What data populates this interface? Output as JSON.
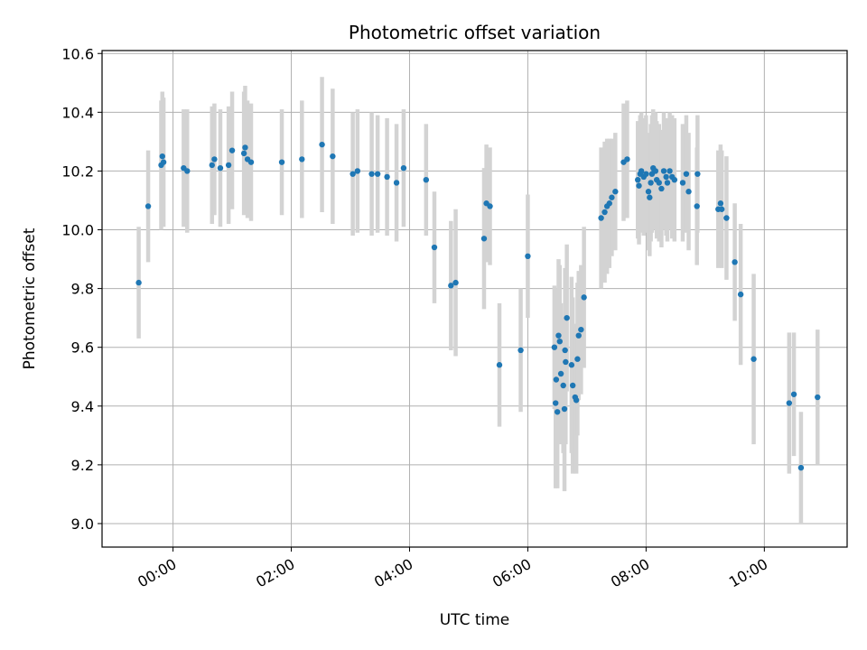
{
  "chart_data": {
    "type": "scatter",
    "title": "Photometric offset variation",
    "xlabel": "UTC time",
    "ylabel": "Photometric offset",
    "xlim": [
      -1.2,
      11.4
    ],
    "ylim": [
      8.92,
      10.61
    ],
    "x_unit": "hours UTC",
    "xticks": [
      0,
      2,
      4,
      6,
      8,
      10
    ],
    "xtick_labels": [
      "00:00",
      "02:00",
      "04:00",
      "06:00",
      "08:00",
      "10:00"
    ],
    "yticks": [
      9.0,
      9.2,
      9.4,
      9.6,
      9.8,
      10.0,
      10.2,
      10.4,
      10.6
    ],
    "ytick_labels": [
      "9.0",
      "9.2",
      "9.4",
      "9.6",
      "9.8",
      "10.0",
      "10.2",
      "10.4",
      "10.6"
    ],
    "grid": true,
    "point_color": "#1f77b4",
    "errorbar_color": "#d3d3d3",
    "series": [
      {
        "x": [
          -0.58,
          -0.42,
          -0.2,
          -0.18,
          -0.16,
          0.18,
          0.24,
          0.66,
          0.7,
          0.8,
          0.94,
          1.0,
          1.2,
          1.22,
          1.26,
          1.32,
          1.84,
          2.18,
          2.52,
          2.7,
          3.04,
          3.12,
          3.36,
          3.46,
          3.62,
          3.78,
          3.9,
          4.28,
          4.42,
          4.7,
          4.78,
          5.26,
          5.3,
          5.36,
          5.52,
          5.88,
          6.0,
          6.45,
          6.47,
          6.48,
          6.5,
          6.52,
          6.54,
          6.56,
          6.6,
          6.62,
          6.63,
          6.64,
          6.66,
          6.74,
          6.76,
          6.8,
          6.82,
          6.84,
          6.86,
          6.9,
          6.95,
          7.24,
          7.3,
          7.34,
          7.38,
          7.42,
          7.48,
          7.62,
          7.68,
          7.86,
          7.88,
          7.9,
          7.92,
          7.96,
          8.0,
          8.04,
          8.06,
          8.08,
          8.1,
          8.12,
          8.14,
          8.16,
          8.18,
          8.22,
          8.26,
          8.3,
          8.34,
          8.36,
          8.4,
          8.44,
          8.48,
          8.62,
          8.68,
          8.72,
          8.86,
          8.87,
          9.22,
          9.26,
          9.28,
          9.36,
          9.5,
          9.6,
          9.82,
          10.42,
          10.5,
          10.62,
          10.9
        ],
        "y": [
          9.82,
          10.08,
          10.22,
          10.25,
          10.23,
          10.21,
          10.2,
          10.22,
          10.24,
          10.21,
          10.22,
          10.27,
          10.26,
          10.28,
          10.24,
          10.23,
          10.23,
          10.24,
          10.29,
          10.25,
          10.19,
          10.2,
          10.19,
          10.19,
          10.18,
          10.16,
          10.21,
          10.17,
          9.94,
          9.81,
          9.82,
          9.97,
          10.09,
          10.08,
          9.54,
          9.59,
          9.91,
          9.6,
          9.41,
          9.49,
          9.38,
          9.64,
          9.62,
          9.51,
          9.47,
          9.39,
          9.59,
          9.55,
          9.7,
          9.54,
          9.47,
          9.43,
          9.42,
          9.56,
          9.64,
          9.66,
          9.77,
          10.04,
          10.06,
          10.08,
          10.09,
          10.11,
          10.13,
          10.23,
          10.24,
          10.17,
          10.15,
          10.19,
          10.2,
          10.18,
          10.19,
          10.13,
          10.11,
          10.16,
          10.19,
          10.21,
          10.2,
          10.2,
          10.17,
          10.16,
          10.14,
          10.2,
          10.18,
          10.16,
          10.2,
          10.18,
          10.17,
          10.16,
          10.19,
          10.13,
          10.08,
          10.19,
          10.07,
          10.09,
          10.07,
          10.04,
          9.89,
          9.78,
          9.56,
          9.41,
          9.44,
          9.19,
          9.43
        ],
        "err": [
          0.19,
          0.19,
          0.22,
          0.22,
          0.22,
          0.2,
          0.21,
          0.2,
          0.19,
          0.2,
          0.2,
          0.2,
          0.21,
          0.21,
          0.2,
          0.2,
          0.18,
          0.2,
          0.23,
          0.23,
          0.21,
          0.21,
          0.21,
          0.2,
          0.2,
          0.2,
          0.2,
          0.19,
          0.19,
          0.22,
          0.25,
          0.24,
          0.2,
          0.2,
          0.21,
          0.21,
          0.21,
          0.21,
          0.29,
          0.31,
          0.26,
          0.26,
          0.26,
          0.24,
          0.23,
          0.28,
          0.28,
          0.28,
          0.25,
          0.3,
          0.3,
          0.25,
          0.25,
          0.26,
          0.22,
          0.22,
          0.24,
          0.24,
          0.24,
          0.23,
          0.22,
          0.2,
          0.2,
          0.2,
          0.2,
          0.2,
          0.2,
          0.2,
          0.2,
          0.2,
          0.2,
          0.2,
          0.2,
          0.2,
          0.2,
          0.2,
          0.2,
          0.2,
          0.2,
          0.2,
          0.2,
          0.2,
          0.2,
          0.2,
          0.2,
          0.21,
          0.21,
          0.2,
          0.2,
          0.2,
          0.2,
          0.2,
          0.2,
          0.2,
          0.2,
          0.21,
          0.2,
          0.24,
          0.29,
          0.24,
          0.21,
          0.19,
          0.23
        ]
      }
    ]
  }
}
